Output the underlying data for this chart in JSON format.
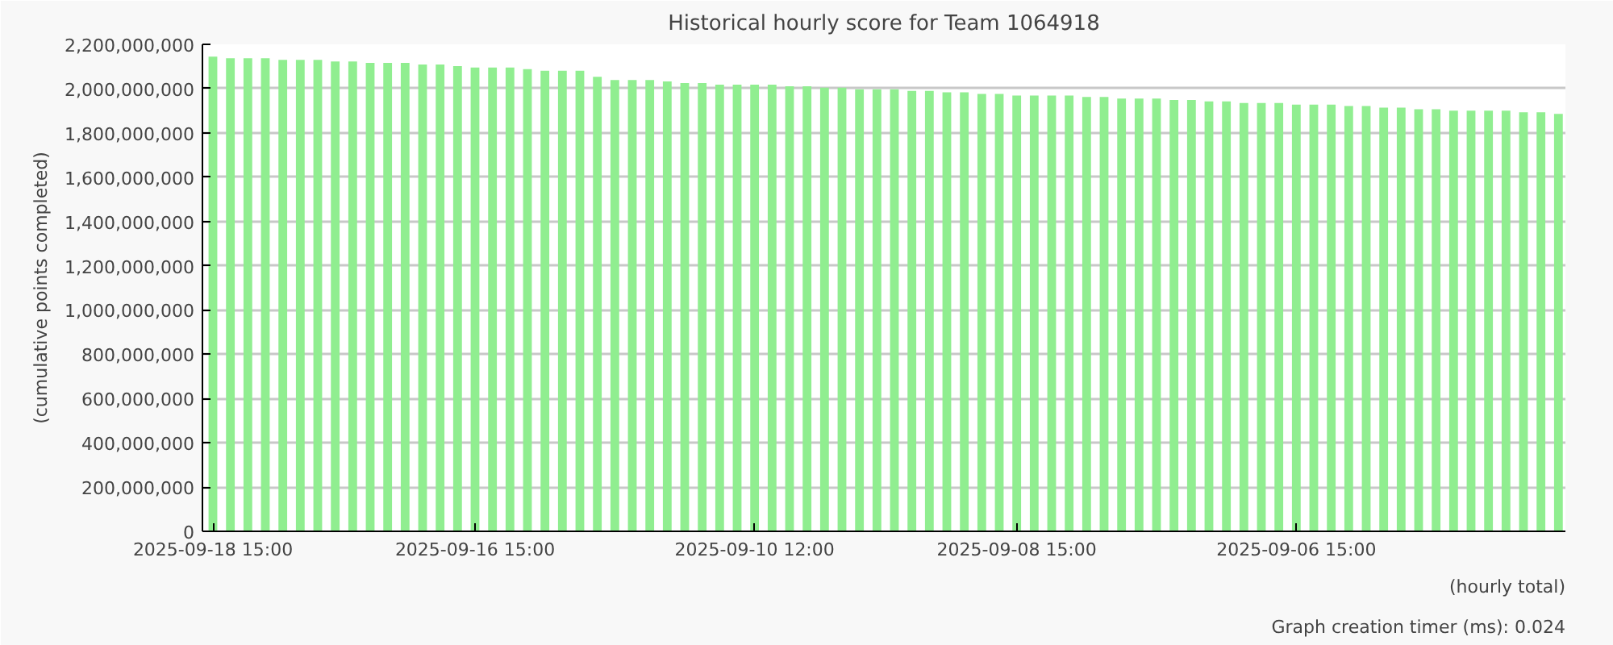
{
  "chart_data": {
    "type": "bar",
    "title": "Historical hourly score for Team 1064918",
    "xlabel": "(hourly total)",
    "ylabel": "(cumulative points completed)",
    "annotations": [
      "Graph creation timer (ms): 0.024"
    ],
    "categories": [
      "2025-09-18 15:00",
      null,
      null,
      null,
      null,
      null,
      null,
      null,
      null,
      null,
      null,
      null,
      null,
      null,
      null,
      "2025-09-16 15:00",
      null,
      null,
      null,
      null,
      null,
      null,
      null,
      null,
      null,
      null,
      null,
      null,
      null,
      null,
      null,
      "2025-09-10 12:00",
      null,
      null,
      null,
      null,
      null,
      null,
      null,
      null,
      null,
      null,
      null,
      null,
      null,
      null,
      "2025-09-08 15:00",
      null,
      null,
      null,
      null,
      null,
      null,
      null,
      null,
      null,
      null,
      null,
      null,
      null,
      null,
      null,
      "2025-09-06 15:00",
      null,
      null,
      null,
      null,
      null,
      null,
      null,
      null,
      null,
      null,
      null,
      null,
      null,
      null,
      null
    ],
    "values": [
      2144000000,
      2137000000,
      2137000000,
      2137000000,
      2130000000,
      2130000000,
      2130000000,
      2123000000,
      2123000000,
      2116000000,
      2116000000,
      2116000000,
      2109000000,
      2109000000,
      2102000000,
      2095000000,
      2095000000,
      2095000000,
      2088000000,
      2081000000,
      2081000000,
      2081000000,
      2053000000,
      2039000000,
      2039000000,
      2039000000,
      2032000000,
      2025000000,
      2025000000,
      2018000000,
      2018000000,
      2018000000,
      2018000000,
      2011000000,
      2011000000,
      2004000000,
      2004000000,
      1997000000,
      1997000000,
      1997000000,
      1990000000,
      1990000000,
      1983000000,
      1983000000,
      1976000000,
      1976000000,
      1969000000,
      1969000000,
      1969000000,
      1969000000,
      1962000000,
      1962000000,
      1955000000,
      1955000000,
      1955000000,
      1949000000,
      1949000000,
      1942000000,
      1942000000,
      1935000000,
      1935000000,
      1935000000,
      1928000000,
      1928000000,
      1928000000,
      1921000000,
      1921000000,
      1914000000,
      1914000000,
      1907000000,
      1907000000,
      1900000000,
      1900000000,
      1900000000,
      1900000000,
      1893000000,
      1893000000,
      1886000000
    ],
    "color": "#90ee90",
    "ylim": [
      0,
      2200000000
    ],
    "yticks": [
      0,
      {
        "value": 200000000,
        "label": "200,000,000"
      },
      {
        "value": 400000000,
        "label": "400,000,000"
      },
      {
        "value": 600000000,
        "label": "600,000,000"
      },
      {
        "value": 800000000,
        "label": "800,000,000"
      },
      {
        "value": 1000000000,
        "label": "1,000,000,000"
      },
      {
        "value": 1200000000,
        "label": "1,200,000,000"
      },
      {
        "value": 1400000000,
        "label": "1,400,000,000"
      },
      {
        "value": 1600000000,
        "label": "1,600,000,000"
      },
      {
        "value": 1800000000,
        "label": "1,800,000,000"
      },
      {
        "value": 2000000000,
        "label": "2,000,000,000"
      },
      {
        "value": 2200000000,
        "label": "2,200,000,000"
      }
    ],
    "grid": "y"
  }
}
